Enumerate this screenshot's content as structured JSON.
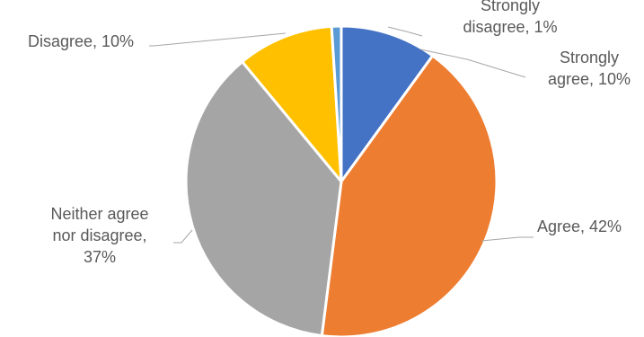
{
  "chart_data": {
    "type": "pie",
    "title": "",
    "slices": [
      {
        "category": "Strongly agree",
        "value": 10,
        "label_lines": [
          "Strongly",
          "agree, 10%"
        ],
        "color": "#4472c4"
      },
      {
        "category": "Agree",
        "value": 42,
        "label_lines": [
          "Agree, 42%"
        ],
        "color": "#ed7d31"
      },
      {
        "category": "Neither agree nor disagree",
        "value": 37,
        "label_lines": [
          "Neither agree",
          "nor disagree,",
          "37%"
        ],
        "color": "#a5a5a5"
      },
      {
        "category": "Disagree",
        "value": 10,
        "label_lines": [
          "Disagree, 10%"
        ],
        "color": "#ffc000"
      },
      {
        "category": "Strongly disagree",
        "value": 1,
        "label_lines": [
          "Strongly",
          "disagree, 1%"
        ],
        "color": "#5b9bd5"
      }
    ],
    "start_angle_deg": 0,
    "direction": "clockwise",
    "data_labels": "outside-with-leader-lines",
    "legend": "none"
  }
}
